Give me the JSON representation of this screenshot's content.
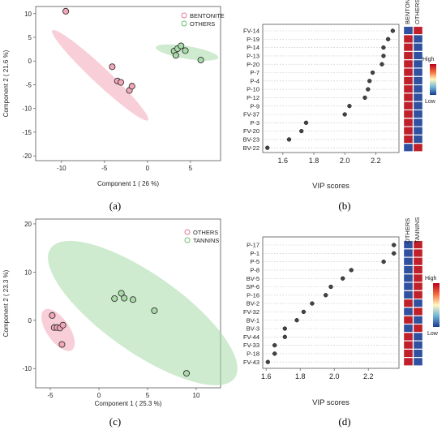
{
  "captions": [
    "(a)",
    "(b)",
    "(c)",
    "(d)"
  ],
  "chart_data": [
    {
      "type": "scatter",
      "xlabel": "Component 1 ( 26 %)",
      "ylabel": "Component 2 ( 21.6 %)",
      "xlim": [
        -13,
        8.5
      ],
      "ylim": [
        -21,
        11.5
      ],
      "xticks": [
        -10,
        -5,
        0,
        5
      ],
      "yticks": [
        10,
        5,
        0,
        -5,
        -10,
        -15,
        -20
      ],
      "series": [
        {
          "name": "BENTONITE",
          "color": "#f2a6b8",
          "x": [
            -9.5,
            -4.1,
            -3.5,
            -3.1,
            -2.1,
            -1.8
          ],
          "y": [
            10.5,
            -1.2,
            -4.2,
            -4.5,
            -6.2,
            -5.3
          ],
          "ellipse": {
            "cx": -5.5,
            "cy": -3,
            "rx": 11,
            "ry": 1.2,
            "angle": -60
          }
        },
        {
          "name": "OTHERS",
          "color": "#a8dba8",
          "x": [
            3.1,
            3.5,
            3.9,
            4.4,
            6.2,
            3.3
          ],
          "y": [
            2.1,
            2.6,
            3.2,
            2.2,
            0.2,
            1.2
          ],
          "ellipse": {
            "cx": 4.6,
            "cy": 1.8,
            "rx": 3.8,
            "ry": 1.3,
            "angle": -18
          }
        }
      ]
    },
    {
      "type": "scatter",
      "xlabel": "VIP scores",
      "xlim": [
        1.47,
        2.35
      ],
      "xticks": [
        1.6,
        1.8,
        2.0,
        2.2
      ],
      "categories": [
        "FV-14",
        "P-19",
        "P-14",
        "P-13",
        "P-20",
        "P-7",
        "P-4",
        "P-10",
        "P-12",
        "P-9",
        "FV-37",
        "P-3",
        "FV-20",
        "BV-23",
        "BV-22"
      ],
      "values": [
        2.31,
        2.28,
        2.25,
        2.25,
        2.24,
        2.18,
        2.16,
        2.15,
        2.13,
        2.03,
        2.0,
        1.75,
        1.72,
        1.64,
        1.5
      ],
      "heat_columns": [
        "BENTONITE",
        "OTHERS"
      ],
      "heat_colors": [
        [
          "#3050a0",
          "#c0202a"
        ],
        [
          "#c0202a",
          "#3050a0"
        ],
        [
          "#c0202a",
          "#3050a0"
        ],
        [
          "#c0202a",
          "#3050a0"
        ],
        [
          "#c0202a",
          "#3050a0"
        ],
        [
          "#c0202a",
          "#3050a0"
        ],
        [
          "#c0202a",
          "#3050a0"
        ],
        [
          "#c0202a",
          "#3050a0"
        ],
        [
          "#c0202a",
          "#3050a0"
        ],
        [
          "#c0202a",
          "#3050a0"
        ],
        [
          "#c0202a",
          "#3050a0"
        ],
        [
          "#c0202a",
          "#3050a0"
        ],
        [
          "#c0202a",
          "#3050a0"
        ],
        [
          "#c0202a",
          "#3050a0"
        ],
        [
          "#3050a0",
          "#c0202a"
        ]
      ],
      "legend": {
        "high": "High",
        "low": "Low"
      }
    },
    {
      "type": "scatter",
      "xlabel": "Component 1 ( 25.3 %)",
      "ylabel": "Component 2 ( 23.3 %)",
      "xlim": [
        -6.5,
        12.5
      ],
      "ylim": [
        -14,
        21
      ],
      "xticks": [
        -5,
        0,
        5,
        10
      ],
      "yticks": [
        20,
        10,
        0,
        -10
      ],
      "series": [
        {
          "name": "OTHERS",
          "color": "#f2a6b8",
          "x": [
            -4.8,
            -4.6,
            -4.3,
            -4.0,
            -3.7,
            -3.8
          ],
          "y": [
            1.0,
            -1.5,
            -1.5,
            -1.6,
            -1.0,
            -5.0
          ],
          "ellipse": {
            "cx": -4.2,
            "cy": -2,
            "rx": 4.5,
            "ry": 1.3,
            "angle": -75
          }
        },
        {
          "name": "TANNINS",
          "color": "#a8dba8",
          "x": [
            1.6,
            2.3,
            2.6,
            3.5,
            5.7,
            9.0
          ],
          "y": [
            4.5,
            5.6,
            4.6,
            4.3,
            2.0,
            -11.0
          ],
          "ellipse": {
            "cx": 4.5,
            "cy": 1.5,
            "rx": 17,
            "ry": 5.5,
            "angle": -60
          }
        }
      ]
    },
    {
      "type": "scatter",
      "xlabel": "VIP scores",
      "xlim": [
        1.58,
        2.38
      ],
      "xticks": [
        1.6,
        1.8,
        2.0,
        2.2
      ],
      "categories": [
        "P-17",
        "P-1",
        "P-5",
        "P-8",
        "BV-5",
        "SP-6",
        "P-16",
        "BV-2",
        "FV-32",
        "BV-1",
        "BV-3",
        "FV-44",
        "FV-33",
        "P-18",
        "FV-43"
      ],
      "values": [
        2.35,
        2.35,
        2.29,
        2.1,
        2.05,
        1.98,
        1.95,
        1.87,
        1.82,
        1.78,
        1.71,
        1.71,
        1.65,
        1.65,
        1.61
      ],
      "heat_columns": [
        "OTHERS",
        "TANNINS"
      ],
      "heat_colors": [
        [
          "#3050a0",
          "#c0202a"
        ],
        [
          "#3050a0",
          "#c0202a"
        ],
        [
          "#3050a0",
          "#c0202a"
        ],
        [
          "#3050a0",
          "#c0202a"
        ],
        [
          "#3050a0",
          "#c0202a"
        ],
        [
          "#3050a0",
          "#c0202a"
        ],
        [
          "#3050a0",
          "#c0202a"
        ],
        [
          "#c0202a",
          "#3050a0"
        ],
        [
          "#3050a0",
          "#c0202a"
        ],
        [
          "#c0202a",
          "#3050a0"
        ],
        [
          "#3050a0",
          "#c0202a"
        ],
        [
          "#c0202a",
          "#3050a0"
        ],
        [
          "#c0202a",
          "#3050a0"
        ],
        [
          "#c0202a",
          "#3050a0"
        ],
        [
          "#c0202a",
          "#3050a0"
        ]
      ],
      "legend": {
        "high": "High",
        "low": "Low"
      }
    }
  ]
}
